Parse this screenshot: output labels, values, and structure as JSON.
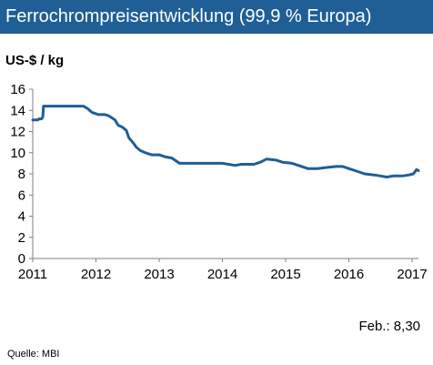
{
  "header": {
    "title": "Ferrochrompreisentwicklung (99,9 % Europa)"
  },
  "chart_data": {
    "type": "line",
    "title": "Ferrochrompreisentwicklung (99,9 % Europa)",
    "ylabel": "US-$ / kg",
    "xlabel": "",
    "ylim": [
      0,
      16
    ],
    "xlim": [
      2011,
      2017.1
    ],
    "y_ticks": [
      "0",
      "2",
      "4",
      "6",
      "8",
      "10",
      "12",
      "14",
      "16"
    ],
    "x_ticks": [
      "2011",
      "2012",
      "2013",
      "2014",
      "2015",
      "2016",
      "2017"
    ],
    "grid": false,
    "series_color": "#1f5f96",
    "series": [
      {
        "x": [
          2011.0,
          2011.08,
          2011.1,
          2011.14,
          2011.16,
          2011.17,
          2011.2,
          2011.5,
          2011.8,
          2011.86,
          2011.94,
          2012.04,
          2012.14,
          2012.2,
          2012.3,
          2012.35,
          2012.42,
          2012.48,
          2012.52,
          2012.58,
          2012.64,
          2012.7,
          2012.78,
          2012.88,
          2013.0,
          2013.1,
          2013.2,
          2013.32,
          2013.5,
          2013.8,
          2014.0,
          2014.2,
          2014.3,
          2014.5,
          2014.6,
          2014.7,
          2014.85,
          2014.95,
          2015.1,
          2015.2,
          2015.35,
          2015.5,
          2015.65,
          2015.8,
          2015.9,
          2016.0,
          2016.1,
          2016.25,
          2016.4,
          2016.5,
          2016.6,
          2016.7,
          2016.85,
          2016.95,
          2017.02,
          2017.07,
          2017.1
        ],
        "y": [
          13.1,
          13.1,
          13.2,
          13.2,
          13.4,
          14.4,
          14.4,
          14.4,
          14.4,
          14.2,
          13.8,
          13.6,
          13.6,
          13.5,
          13.1,
          12.6,
          12.4,
          12.1,
          11.4,
          11.0,
          10.5,
          10.2,
          10.0,
          9.8,
          9.8,
          9.6,
          9.5,
          9.0,
          9.0,
          9.0,
          9.0,
          8.8,
          8.9,
          8.9,
          9.1,
          9.4,
          9.3,
          9.1,
          9.0,
          8.8,
          8.5,
          8.5,
          8.6,
          8.7,
          8.7,
          8.5,
          8.3,
          8.0,
          7.9,
          7.8,
          7.7,
          7.8,
          7.8,
          7.9,
          8.0,
          8.4,
          8.3
        ]
      }
    ],
    "annotation": "Feb.: 8,30",
    "source": "Quelle:  MBI"
  }
}
